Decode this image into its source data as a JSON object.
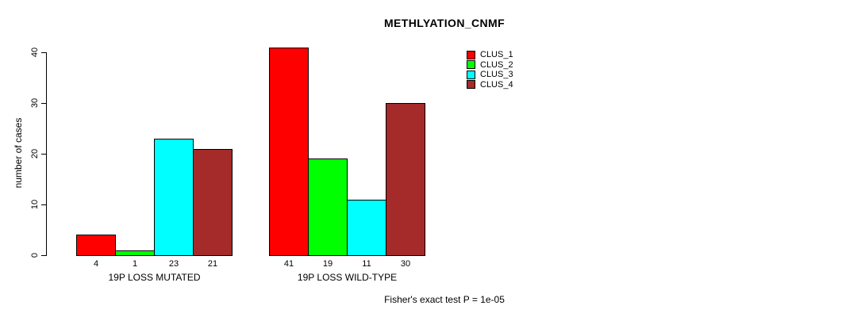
{
  "chart_data": {
    "type": "bar",
    "title": "METHLYATION_CNMF",
    "xlabel": "",
    "ylabel": "number of cases",
    "ylim": [
      0,
      41
    ],
    "yticks": [
      0,
      10,
      20,
      30,
      40
    ],
    "grid": false,
    "legend_position": "top-right-inside",
    "categories": [
      "19P LOSS MUTATED",
      "19P LOSS WILD-TYPE"
    ],
    "series": [
      {
        "name": "CLUS_1",
        "color": "#FF0000",
        "values": [
          4,
          41
        ]
      },
      {
        "name": "CLUS_2",
        "color": "#00FF00",
        "values": [
          1,
          19
        ]
      },
      {
        "name": "CLUS_3",
        "color": "#00FFFF",
        "values": [
          23,
          11
        ]
      },
      {
        "name": "CLUS_4",
        "color": "#A52A2A",
        "values": [
          21,
          30
        ]
      }
    ],
    "bar_value_labels": [
      [
        "4",
        "1",
        "23",
        "21"
      ],
      [
        "41",
        "19",
        "11",
        "30"
      ]
    ],
    "annotation": "Fisher's exact test P = 1e-05"
  }
}
